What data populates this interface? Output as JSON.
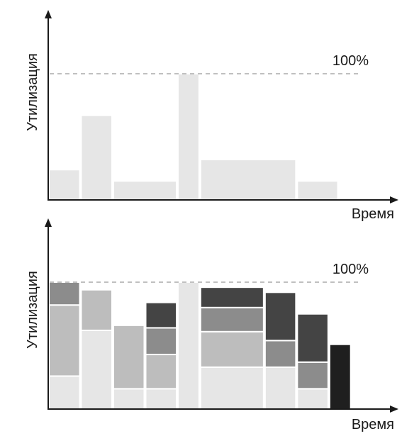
{
  "chart_data": [
    {
      "type": "bar",
      "xlabel": "Время",
      "ylabel": "Утилизация",
      "reference_line": {
        "value": 100,
        "label": "100%"
      },
      "ylim": [
        0,
        118
      ],
      "bars": [
        {
          "x_start": 0,
          "x_end": 10,
          "segments": [
            {
              "value": 24,
              "color": "#e6e6e6"
            }
          ]
        },
        {
          "x_start": 10,
          "x_end": 20,
          "segments": [
            {
              "value": 67,
              "color": "#e6e6e6"
            }
          ]
        },
        {
          "x_start": 20,
          "x_end": 40,
          "segments": [
            {
              "value": 15,
              "color": "#e6e6e6"
            }
          ]
        },
        {
          "x_start": 40,
          "x_end": 47,
          "segments": [
            {
              "value": 100,
              "color": "#e6e6e6"
            }
          ]
        },
        {
          "x_start": 47,
          "x_end": 77,
          "segments": [
            {
              "value": 32,
              "color": "#e6e6e6"
            }
          ]
        },
        {
          "x_start": 77,
          "x_end": 90,
          "segments": [
            {
              "value": 15,
              "color": "#e6e6e6"
            }
          ]
        }
      ]
    },
    {
      "type": "stacked_bar",
      "xlabel": "Время",
      "ylabel": "Утилизация",
      "reference_line": {
        "value": 100,
        "label": "100%"
      },
      "ylim": [
        0,
        148
      ],
      "bars": [
        {
          "x_start": 0,
          "x_end": 10,
          "segments": [
            {
              "value": 26,
              "color": "#e6e6e6"
            },
            {
              "value": 56,
              "color": "#bdbdbd"
            },
            {
              "value": 18,
              "color": "#8c8c8c"
            }
          ]
        },
        {
          "x_start": 10,
          "x_end": 20,
          "segments": [
            {
              "value": 62,
              "color": "#e6e6e6"
            },
            {
              "value": 32,
              "color": "#bdbdbd"
            }
          ]
        },
        {
          "x_start": 20,
          "x_end": 30,
          "segments": [
            {
              "value": 16,
              "color": "#e6e6e6"
            },
            {
              "value": 50,
              "color": "#bdbdbd"
            }
          ]
        },
        {
          "x_start": 30,
          "x_end": 40,
          "segments": [
            {
              "value": 16,
              "color": "#e6e6e6"
            },
            {
              "value": 27,
              "color": "#bdbdbd"
            },
            {
              "value": 21,
              "color": "#8c8c8c"
            },
            {
              "value": 20,
              "color": "#444444"
            }
          ]
        },
        {
          "x_start": 40,
          "x_end": 47,
          "segments": [
            {
              "value": 100,
              "color": "#e6e6e6"
            }
          ]
        },
        {
          "x_start": 47,
          "x_end": 67,
          "segments": [
            {
              "value": 33,
              "color": "#e6e6e6"
            },
            {
              "value": 28,
              "color": "#bdbdbd"
            },
            {
              "value": 19,
              "color": "#8c8c8c"
            },
            {
              "value": 16,
              "color": "#444444"
            }
          ]
        },
        {
          "x_start": 67,
          "x_end": 77,
          "segments": [
            {
              "value": 33,
              "color": "#e6e6e6"
            },
            {
              "value": 21,
              "color": "#8c8c8c"
            },
            {
              "value": 38,
              "color": "#444444"
            }
          ]
        },
        {
          "x_start": 77,
          "x_end": 87,
          "segments": [
            {
              "value": 16,
              "color": "#e6e6e6"
            },
            {
              "value": 21,
              "color": "#8c8c8c"
            },
            {
              "value": 38,
              "color": "#444444"
            }
          ]
        },
        {
          "x_start": 87,
          "x_end": 94,
          "segments": [
            {
              "value": 51,
              "color": "#1f1f1f"
            }
          ]
        }
      ]
    }
  ]
}
